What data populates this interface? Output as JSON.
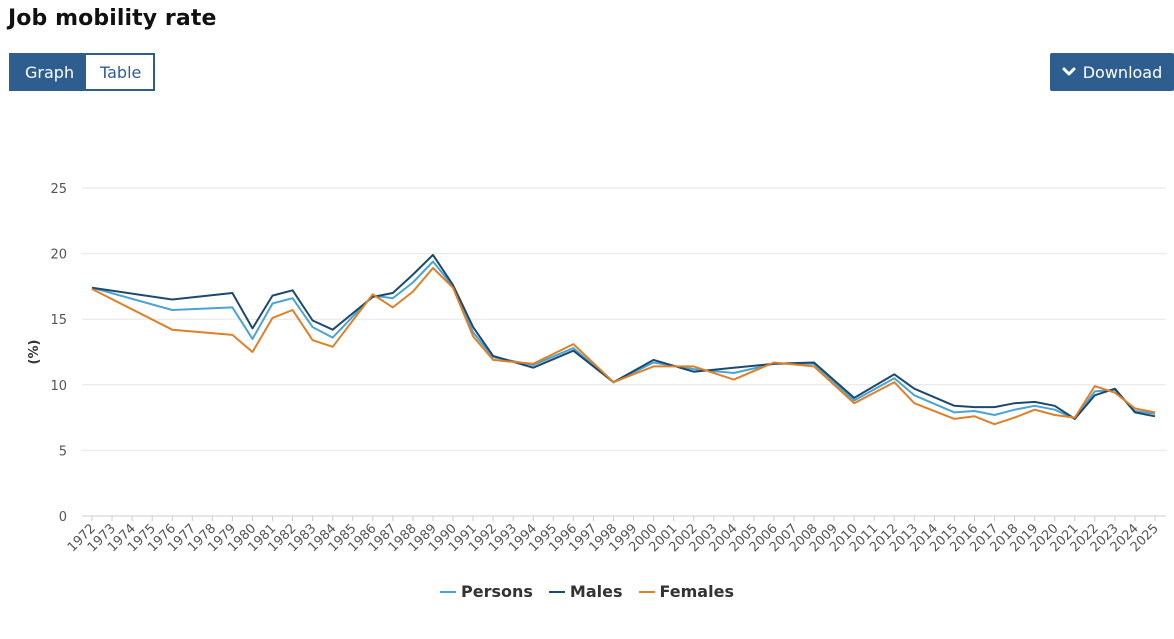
{
  "page": {
    "title": "Job mobility rate"
  },
  "view_toggle": {
    "graph_label": "Graph",
    "table_label": "Table",
    "selected": "Graph"
  },
  "download": {
    "label": "Download",
    "icon": "chevron-down-icon"
  },
  "colors": {
    "accent": "#2e5d8f",
    "persons": "#4ba3d3",
    "males": "#1c4a6e",
    "females": "#dd8027"
  },
  "chart_data": {
    "type": "line",
    "title": "",
    "xlabel": "",
    "ylabel": "(%)",
    "ylim": [
      0,
      25
    ],
    "yticks": [
      0,
      5,
      10,
      15,
      20,
      25
    ],
    "grid": true,
    "legend_position": "bottom",
    "x": [
      "1972",
      "1973",
      "1974",
      "1975",
      "1976",
      "1977",
      "1978",
      "1979",
      "1980",
      "1981",
      "1982",
      "1983",
      "1984",
      "1985",
      "1986",
      "1987",
      "1988",
      "1989",
      "1990",
      "1991",
      "1992",
      "1993",
      "1994",
      "1995",
      "1996",
      "1997",
      "1998",
      "1999",
      "2000",
      "2001",
      "2002",
      "2003",
      "2004",
      "2005",
      "2006",
      "2007",
      "2008",
      "2009",
      "2010",
      "2011",
      "2012",
      "2013",
      "2014",
      "2015",
      "2016",
      "2017",
      "2018",
      "2019",
      "2020",
      "2021",
      "2022",
      "2023",
      "2024",
      "2025"
    ],
    "series": [
      {
        "name": "Persons",
        "color": "#4ba3d3",
        "points": [
          [
            "1972",
            17.4
          ],
          [
            "1976",
            15.7
          ],
          [
            "1979",
            15.9
          ],
          [
            "1980",
            13.5
          ],
          [
            "1981",
            16.2
          ],
          [
            "1982",
            16.6
          ],
          [
            "1983",
            14.4
          ],
          [
            "1984",
            13.6
          ],
          [
            "1986",
            16.8
          ],
          [
            "1987",
            16.6
          ],
          [
            "1988",
            17.8
          ],
          [
            "1989",
            19.4
          ],
          [
            "1990",
            17.5
          ],
          [
            "1991",
            14.0
          ],
          [
            "1992",
            12.1
          ],
          [
            "1994",
            11.5
          ],
          [
            "1996",
            12.8
          ],
          [
            "1998",
            10.2
          ],
          [
            "2000",
            11.7
          ],
          [
            "2002",
            11.2
          ],
          [
            "2004",
            10.9
          ],
          [
            "2006",
            11.6
          ],
          [
            "2008",
            11.6
          ],
          [
            "2010",
            8.8
          ],
          [
            "2012",
            10.5
          ],
          [
            "2013",
            9.2
          ],
          [
            "2015",
            7.9
          ],
          [
            "2016",
            8.0
          ],
          [
            "2017",
            7.7
          ],
          [
            "2018",
            8.1
          ],
          [
            "2019",
            8.4
          ],
          [
            "2020",
            8.1
          ],
          [
            "2021",
            7.4
          ],
          [
            "2022",
            9.5
          ],
          [
            "2023",
            9.6
          ],
          [
            "2024",
            8.0
          ],
          [
            "2025",
            7.8
          ]
        ]
      },
      {
        "name": "Males",
        "color": "#1c4a6e",
        "points": [
          [
            "1972",
            17.4
          ],
          [
            "1976",
            16.5
          ],
          [
            "1979",
            17.0
          ],
          [
            "1980",
            14.3
          ],
          [
            "1981",
            16.8
          ],
          [
            "1982",
            17.2
          ],
          [
            "1983",
            14.9
          ],
          [
            "1984",
            14.2
          ],
          [
            "1986",
            16.7
          ],
          [
            "1987",
            17.0
          ],
          [
            "1988",
            18.4
          ],
          [
            "1989",
            19.9
          ],
          [
            "1990",
            17.6
          ],
          [
            "1991",
            14.4
          ],
          [
            "1992",
            12.2
          ],
          [
            "1994",
            11.3
          ],
          [
            "1996",
            12.6
          ],
          [
            "1998",
            10.2
          ],
          [
            "2000",
            11.9
          ],
          [
            "2002",
            11.0
          ],
          [
            "2004",
            11.3
          ],
          [
            "2006",
            11.6
          ],
          [
            "2008",
            11.7
          ],
          [
            "2010",
            9.0
          ],
          [
            "2012",
            10.8
          ],
          [
            "2013",
            9.7
          ],
          [
            "2015",
            8.4
          ],
          [
            "2016",
            8.3
          ],
          [
            "2017",
            8.3
          ],
          [
            "2018",
            8.6
          ],
          [
            "2019",
            8.7
          ],
          [
            "2020",
            8.4
          ],
          [
            "2021",
            7.4
          ],
          [
            "2022",
            9.2
          ],
          [
            "2023",
            9.7
          ],
          [
            "2024",
            7.9
          ],
          [
            "2025",
            7.6
          ]
        ]
      },
      {
        "name": "Females",
        "color": "#dd8027",
        "points": [
          [
            "1972",
            17.3
          ],
          [
            "1976",
            14.2
          ],
          [
            "1979",
            13.8
          ],
          [
            "1980",
            12.5
          ],
          [
            "1981",
            15.1
          ],
          [
            "1982",
            15.7
          ],
          [
            "1983",
            13.4
          ],
          [
            "1984",
            12.9
          ],
          [
            "1986",
            16.9
          ],
          [
            "1987",
            15.9
          ],
          [
            "1988",
            17.1
          ],
          [
            "1989",
            18.9
          ],
          [
            "1990",
            17.4
          ],
          [
            "1991",
            13.7
          ],
          [
            "1992",
            11.9
          ],
          [
            "1994",
            11.6
          ],
          [
            "1996",
            13.1
          ],
          [
            "1998",
            10.2
          ],
          [
            "2000",
            11.4
          ],
          [
            "2002",
            11.4
          ],
          [
            "2004",
            10.4
          ],
          [
            "2006",
            11.7
          ],
          [
            "2008",
            11.4
          ],
          [
            "2010",
            8.6
          ],
          [
            "2012",
            10.2
          ],
          [
            "2013",
            8.6
          ],
          [
            "2015",
            7.4
          ],
          [
            "2016",
            7.6
          ],
          [
            "2017",
            7.0
          ],
          [
            "2018",
            7.5
          ],
          [
            "2019",
            8.1
          ],
          [
            "2020",
            7.7
          ],
          [
            "2021",
            7.5
          ],
          [
            "2022",
            9.9
          ],
          [
            "2023",
            9.4
          ],
          [
            "2024",
            8.2
          ],
          [
            "2025",
            7.9
          ]
        ]
      }
    ]
  }
}
